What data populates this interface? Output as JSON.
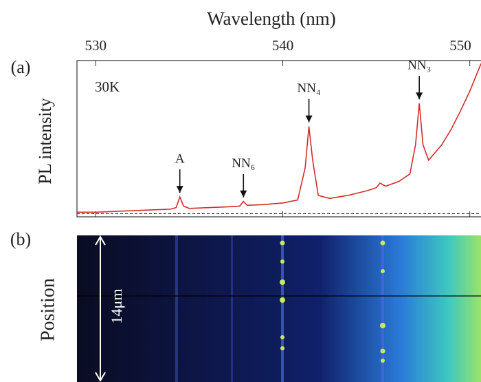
{
  "chart_data": {
    "type": "line",
    "xlabel": "Wavelength (nm)",
    "ylabel": "PL intensity",
    "panel_labels": [
      "(a)",
      "(b)"
    ],
    "temperature": "30K",
    "image_ylabel": "Position",
    "scale_bar": "14μm",
    "color": "#d62a2a",
    "xlim": [
      529,
      550.6
    ],
    "xticks": [
      530,
      540,
      550
    ],
    "ylim": [
      -0.02,
      1
    ],
    "x": [
      529,
      530,
      531,
      532,
      533,
      534,
      534.3,
      534.5,
      534.7,
      535,
      536,
      537,
      537.7,
      537.9,
      538.1,
      539,
      540,
      540.8,
      541.2,
      541.4,
      541.6,
      541.9,
      542.5,
      543.5,
      544.5,
      545,
      545.2,
      545.5,
      546.2,
      546.8,
      547.1,
      547.3,
      547.5,
      547.8,
      548.5,
      549,
      549.5,
      550,
      550.4,
      550.6
    ],
    "values": [
      0.01,
      0.01,
      0.015,
      0.02,
      0.025,
      0.03,
      0.04,
      0.11,
      0.05,
      0.035,
      0.04,
      0.045,
      0.05,
      0.08,
      0.055,
      0.06,
      0.07,
      0.09,
      0.3,
      0.57,
      0.35,
      0.12,
      0.1,
      0.12,
      0.15,
      0.17,
      0.2,
      0.18,
      0.21,
      0.26,
      0.45,
      0.72,
      0.45,
      0.35,
      0.45,
      0.55,
      0.67,
      0.8,
      0.92,
      0.98
    ],
    "annotations": [
      {
        "text": "A",
        "x": 534.5,
        "y": 0.11
      },
      {
        "text": "NN₆",
        "x": 537.9,
        "y": 0.08
      },
      {
        "text": "NN₄",
        "x": 541.4,
        "y": 0.57
      },
      {
        "text": "NN₃",
        "x": 547.3,
        "y": 0.72
      }
    ]
  }
}
